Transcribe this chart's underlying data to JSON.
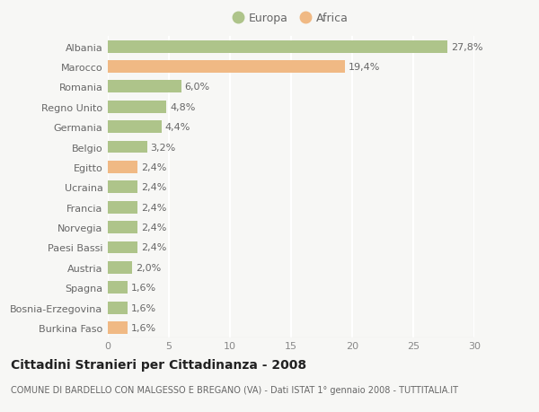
{
  "categories": [
    "Albania",
    "Marocco",
    "Romania",
    "Regno Unito",
    "Germania",
    "Belgio",
    "Egitto",
    "Ucraina",
    "Francia",
    "Norvegia",
    "Paesi Bassi",
    "Austria",
    "Spagna",
    "Bosnia-Erzegovina",
    "Burkina Faso"
  ],
  "values": [
    27.8,
    19.4,
    6.0,
    4.8,
    4.4,
    3.2,
    2.4,
    2.4,
    2.4,
    2.4,
    2.4,
    2.0,
    1.6,
    1.6,
    1.6
  ],
  "labels": [
    "27,8%",
    "19,4%",
    "6,0%",
    "4,8%",
    "4,4%",
    "3,2%",
    "2,4%",
    "2,4%",
    "2,4%",
    "2,4%",
    "2,4%",
    "2,0%",
    "1,6%",
    "1,6%",
    "1,6%"
  ],
  "continent": [
    "Europa",
    "Africa",
    "Europa",
    "Europa",
    "Europa",
    "Europa",
    "Africa",
    "Europa",
    "Europa",
    "Europa",
    "Europa",
    "Europa",
    "Europa",
    "Europa",
    "Africa"
  ],
  "color_europa": "#aec48a",
  "color_africa": "#f0b984",
  "background_color": "#f7f7f5",
  "grid_color": "#ffffff",
  "title": "Cittadini Stranieri per Cittadinanza - 2008",
  "subtitle": "COMUNE DI BARDELLO CON MALGESSO E BREGANO (VA) - Dati ISTAT 1° gennaio 2008 - TUTTITALIA.IT",
  "xlim": [
    0,
    30
  ],
  "xticks": [
    0,
    5,
    10,
    15,
    20,
    25,
    30
  ],
  "legend_europa": "Europa",
  "legend_africa": "Africa",
  "bar_height": 0.62,
  "label_fontsize": 8,
  "tick_fontsize": 8,
  "title_fontsize": 10,
  "subtitle_fontsize": 7
}
